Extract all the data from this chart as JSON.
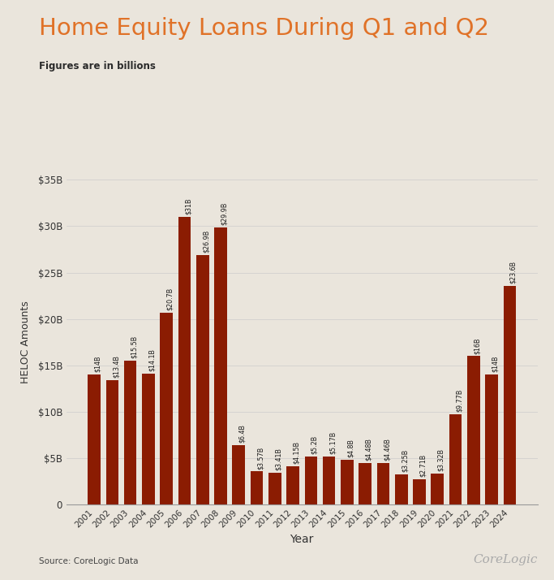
{
  "title": "Home Equity Loans During Q1 and Q2",
  "subtitle": "Figures are in billions",
  "xlabel": "Year",
  "ylabel": "HELOC Amounts",
  "source": "Source: CoreLogic Data",
  "watermark": "CoreLogic",
  "background_color": "#EAE5DC",
  "bar_color": "#8B1C02",
  "title_color": "#E07228",
  "label_color": "#1a1a1a",
  "years": [
    2001,
    2002,
    2003,
    2004,
    2005,
    2006,
    2007,
    2008,
    2009,
    2010,
    2011,
    2012,
    2013,
    2014,
    2015,
    2016,
    2017,
    2018,
    2019,
    2020,
    2021,
    2022,
    2023,
    2024
  ],
  "values": [
    14.0,
    13.4,
    15.5,
    14.1,
    20.7,
    31.0,
    26.9,
    29.9,
    6.4,
    3.57,
    3.41,
    4.15,
    5.2,
    5.17,
    4.8,
    4.48,
    4.46,
    3.25,
    2.71,
    3.32,
    9.77,
    16.0,
    14.0,
    23.6
  ],
  "labels": [
    "$14B",
    "$13.4B",
    "$15.5B",
    "$14.1B",
    "$20.7B",
    "$31B",
    "$26.9B",
    "$29.9B",
    "$6.4B",
    "$3.57B",
    "$3.41B",
    "$4.15B",
    "$5.2B",
    "$5.17B",
    "$4.8B",
    "$4.48B",
    "$4.46B",
    "$3.25B",
    "$2.71B",
    "$3.32B",
    "$9.77B",
    "$16B",
    "$14B",
    "$23.6B"
  ],
  "ylim": [
    0,
    35
  ],
  "yticks": [
    0,
    5,
    10,
    15,
    20,
    25,
    30,
    35
  ],
  "ytick_labels": [
    "0",
    "$5B",
    "$10B",
    "$15B",
    "$20B",
    "$25B",
    "$30B",
    "$35B"
  ]
}
